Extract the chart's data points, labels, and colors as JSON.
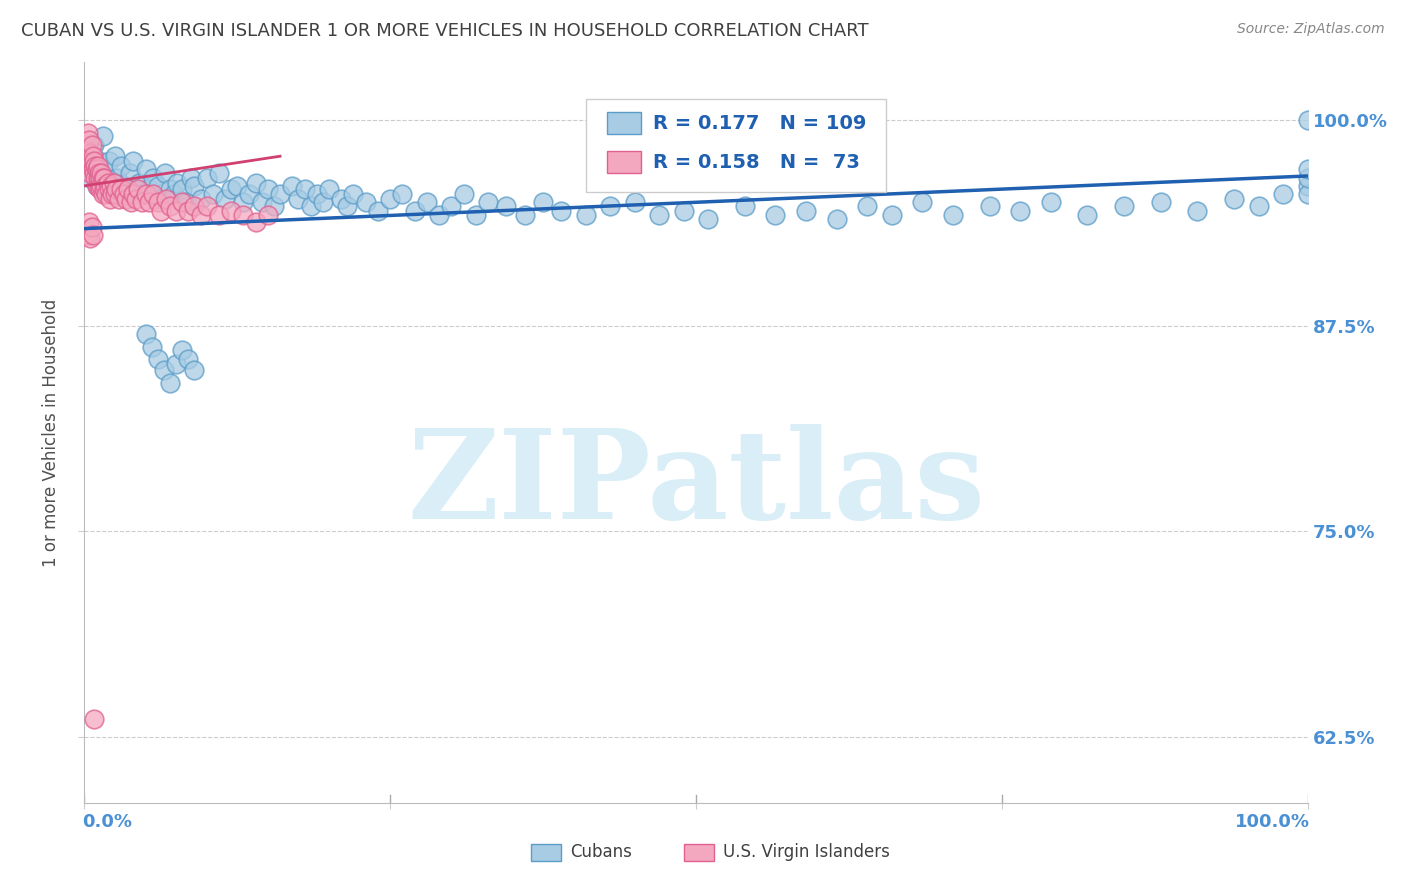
{
  "title": "CUBAN VS U.S. VIRGIN ISLANDER 1 OR MORE VEHICLES IN HOUSEHOLD CORRELATION CHART",
  "source": "Source: ZipAtlas.com",
  "ylabel": "1 or more Vehicles in Household",
  "ytick_labels": [
    "100.0%",
    "87.5%",
    "75.0%",
    "62.5%"
  ],
  "ytick_values": [
    1.0,
    0.875,
    0.75,
    0.625
  ],
  "xlim": [
    0.0,
    1.0
  ],
  "ylim": [
    0.585,
    1.035
  ],
  "color_blue": "#a8cce4",
  "color_pink": "#f4a8bf",
  "color_blue_edge": "#5b9dc9",
  "color_pink_edge": "#e06090",
  "color_blue_line": "#2060b0",
  "color_pink_line": "#d04070",
  "color_title": "#404040",
  "color_source": "#888888",
  "color_axis_label": "#4a90d4",
  "color_grid": "#cccccc",
  "watermark_color": "#daeef8",
  "watermark_text": "ZIPatlas",
  "legend_text_color": "#2060b0",
  "blue_scatter_x": [
    0.005,
    0.008,
    0.01,
    0.012,
    0.015,
    0.016,
    0.018,
    0.02,
    0.022,
    0.025,
    0.027,
    0.03,
    0.032,
    0.035,
    0.037,
    0.04,
    0.042,
    0.045,
    0.047,
    0.05,
    0.053,
    0.056,
    0.06,
    0.063,
    0.066,
    0.07,
    0.073,
    0.076,
    0.08,
    0.083,
    0.087,
    0.09,
    0.095,
    0.1,
    0.105,
    0.11,
    0.115,
    0.12,
    0.125,
    0.13,
    0.135,
    0.14,
    0.145,
    0.15,
    0.155,
    0.16,
    0.17,
    0.175,
    0.18,
    0.185,
    0.19,
    0.195,
    0.2,
    0.21,
    0.215,
    0.22,
    0.23,
    0.24,
    0.25,
    0.26,
    0.27,
    0.28,
    0.29,
    0.3,
    0.31,
    0.32,
    0.33,
    0.345,
    0.36,
    0.375,
    0.39,
    0.41,
    0.43,
    0.45,
    0.47,
    0.49,
    0.51,
    0.54,
    0.565,
    0.59,
    0.615,
    0.64,
    0.66,
    0.685,
    0.71,
    0.74,
    0.765,
    0.79,
    0.82,
    0.85,
    0.88,
    0.91,
    0.94,
    0.96,
    0.98,
    1.0,
    1.0,
    1.0,
    1.0,
    1.0,
    0.05,
    0.055,
    0.06,
    0.065,
    0.07,
    0.075,
    0.08,
    0.085,
    0.09
  ],
  "blue_scatter_y": [
    0.965,
    0.985,
    0.96,
    0.975,
    0.99,
    0.97,
    0.958,
    0.975,
    0.962,
    0.978,
    0.965,
    0.972,
    0.96,
    0.955,
    0.968,
    0.975,
    0.958,
    0.962,
    0.955,
    0.97,
    0.958,
    0.965,
    0.96,
    0.952,
    0.968,
    0.958,
    0.955,
    0.962,
    0.958,
    0.95,
    0.965,
    0.96,
    0.952,
    0.965,
    0.955,
    0.968,
    0.952,
    0.958,
    0.96,
    0.95,
    0.955,
    0.962,
    0.95,
    0.958,
    0.948,
    0.955,
    0.96,
    0.952,
    0.958,
    0.948,
    0.955,
    0.95,
    0.958,
    0.952,
    0.948,
    0.955,
    0.95,
    0.945,
    0.952,
    0.955,
    0.945,
    0.95,
    0.942,
    0.948,
    0.955,
    0.942,
    0.95,
    0.948,
    0.942,
    0.95,
    0.945,
    0.942,
    0.948,
    0.95,
    0.942,
    0.945,
    0.94,
    0.948,
    0.942,
    0.945,
    0.94,
    0.948,
    0.942,
    0.95,
    0.942,
    0.948,
    0.945,
    0.95,
    0.942,
    0.948,
    0.95,
    0.945,
    0.952,
    0.948,
    0.955,
    0.96,
    0.955,
    0.965,
    0.97,
    1.0,
    0.87,
    0.862,
    0.855,
    0.848,
    0.84,
    0.852,
    0.86,
    0.855,
    0.848
  ],
  "pink_scatter_x": [
    0.002,
    0.003,
    0.004,
    0.004,
    0.005,
    0.005,
    0.006,
    0.006,
    0.007,
    0.007,
    0.008,
    0.008,
    0.009,
    0.009,
    0.01,
    0.01,
    0.011,
    0.011,
    0.012,
    0.012,
    0.013,
    0.013,
    0.014,
    0.014,
    0.015,
    0.015,
    0.016,
    0.016,
    0.017,
    0.018,
    0.019,
    0.02,
    0.021,
    0.022,
    0.023,
    0.024,
    0.025,
    0.026,
    0.028,
    0.03,
    0.032,
    0.034,
    0.036,
    0.038,
    0.04,
    0.042,
    0.044,
    0.047,
    0.05,
    0.053,
    0.056,
    0.06,
    0.063,
    0.067,
    0.07,
    0.075,
    0.08,
    0.085,
    0.09,
    0.095,
    0.1,
    0.11,
    0.12,
    0.13,
    0.14,
    0.15,
    0.003,
    0.004,
    0.005,
    0.006,
    0.007,
    0.008
  ],
  "pink_scatter_y": [
    0.982,
    0.992,
    0.975,
    0.988,
    0.968,
    0.98,
    0.975,
    0.985,
    0.97,
    0.978,
    0.968,
    0.975,
    0.965,
    0.972,
    0.96,
    0.97,
    0.965,
    0.972,
    0.96,
    0.968,
    0.958,
    0.965,
    0.96,
    0.968,
    0.955,
    0.965,
    0.958,
    0.965,
    0.96,
    0.955,
    0.962,
    0.958,
    0.952,
    0.96,
    0.955,
    0.962,
    0.955,
    0.958,
    0.952,
    0.958,
    0.955,
    0.952,
    0.958,
    0.95,
    0.955,
    0.952,
    0.958,
    0.95,
    0.955,
    0.95,
    0.955,
    0.95,
    0.945,
    0.952,
    0.948,
    0.945,
    0.95,
    0.945,
    0.948,
    0.942,
    0.948,
    0.942,
    0.945,
    0.942,
    0.938,
    0.942,
    0.93,
    0.938,
    0.928,
    0.935,
    0.93,
    0.636
  ],
  "blue_trend_x": [
    0.0,
    1.0
  ],
  "blue_trend_y": [
    0.934,
    0.966
  ],
  "pink_trend_x": [
    0.0,
    0.16
  ],
  "pink_trend_y": [
    0.96,
    0.978
  ]
}
